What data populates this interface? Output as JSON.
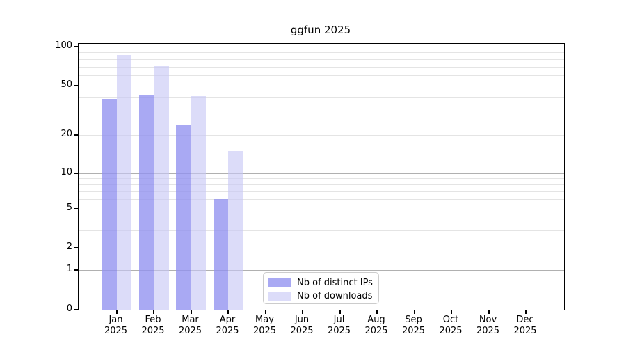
{
  "chart_data": {
    "type": "bar",
    "title": "ggfun 2025",
    "x": {
      "categories": [
        "Jan",
        "Feb",
        "Mar",
        "Apr",
        "May",
        "Jun",
        "Jul",
        "Aug",
        "Sep",
        "Oct",
        "Nov",
        "Dec"
      ],
      "year": "2025"
    },
    "series": [
      {
        "name": "Nb of distinct IPs",
        "color": "rgba(145,145,240,0.78)",
        "values": [
          39,
          42,
          24,
          6,
          0,
          0,
          0,
          0,
          0,
          0,
          0,
          0
        ]
      },
      {
        "name": "Nb of downloads",
        "color": "rgba(198,198,246,0.62)",
        "values": [
          86,
          71,
          41,
          15,
          0,
          0,
          0,
          0,
          0,
          0,
          0,
          0
        ]
      }
    ],
    "y_axis": {
      "scale": "log-like with 0 baseline",
      "tick_labels": [
        "0",
        "1",
        "2",
        "5",
        "10",
        "20",
        "50",
        "100"
      ],
      "tick_values": [
        0,
        1,
        2,
        5,
        10,
        20,
        50,
        100
      ],
      "major_gridlines": [
        1,
        10,
        100
      ],
      "minor_gridlines": [
        2,
        3,
        4,
        5,
        6,
        7,
        8,
        9,
        20,
        30,
        40,
        50,
        60,
        70,
        80,
        90
      ],
      "range": [
        0,
        100
      ]
    },
    "legend_position": "lower center",
    "grid": true,
    "colors": {
      "minor_gridline": "#e4e4e4",
      "major_gridline": "#b0b0b0",
      "axis_spine": "#000000",
      "text": "#000000",
      "background": "#ffffff"
    }
  }
}
